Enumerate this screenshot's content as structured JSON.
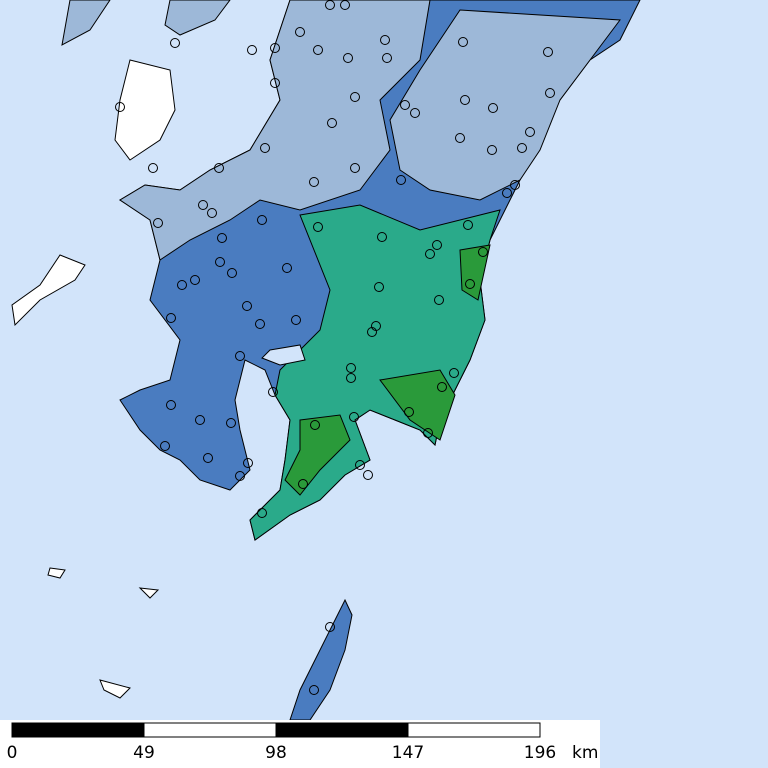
{
  "scale_bar": {
    "labels": [
      "0",
      "49",
      "98",
      "147",
      "196"
    ],
    "unit": "km"
  }
}
